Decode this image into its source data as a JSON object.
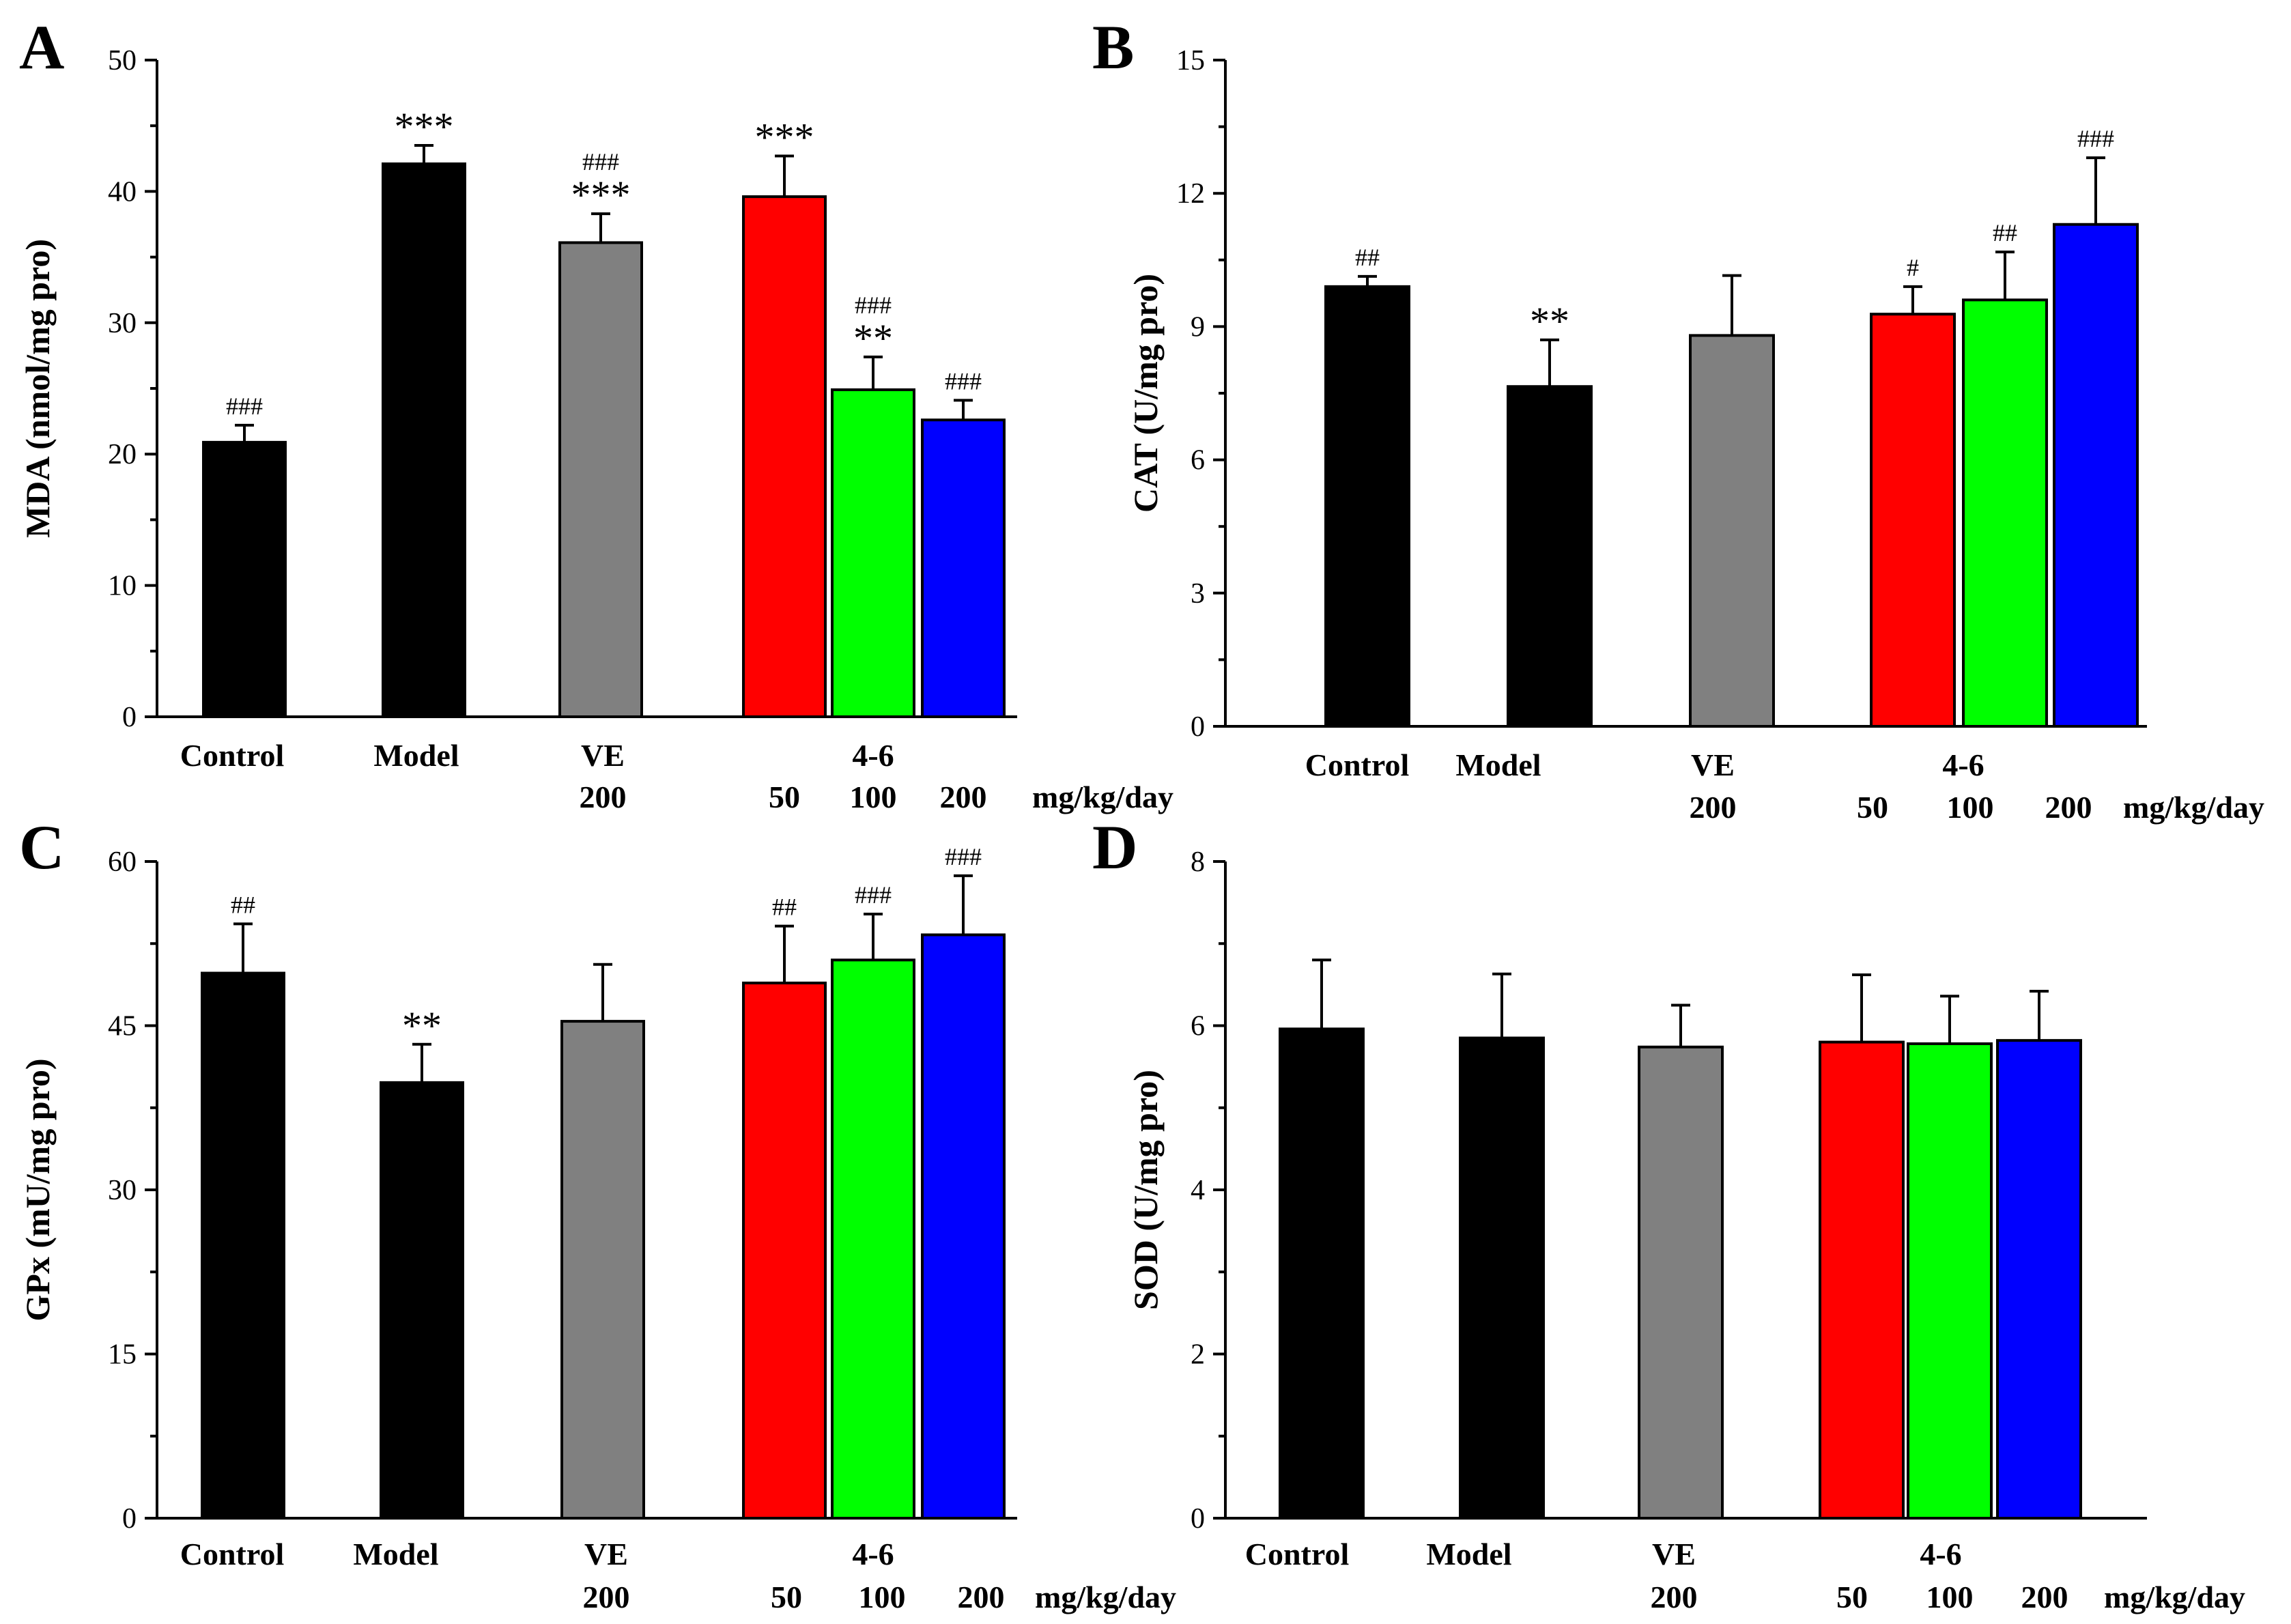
{
  "chart_data": [
    {
      "type": "bar",
      "panel_label": "A",
      "ylabel": "MDA  (nmol/mg pro)",
      "ylim": [
        0,
        50
      ],
      "yticks": [
        0,
        10,
        20,
        30,
        40,
        50
      ],
      "categories": [
        "Control",
        "Model",
        "VE",
        "4-6",
        "4-6",
        "4-6"
      ],
      "group_labels": [
        "Control",
        "Model",
        "VE",
        "4-6"
      ],
      "dose_labels": [
        "200",
        "50",
        "100",
        "200"
      ],
      "dose_unit": "mg/kg/day",
      "values": [
        20.9,
        42.1,
        36.1,
        39.6,
        24.9,
        22.6
      ],
      "errors": [
        1.3,
        1.4,
        2.2,
        3.1,
        2.5,
        1.5
      ],
      "colors": [
        "#000000",
        "#000000",
        "#808080",
        "#ff0000",
        "#00ff00",
        "#0000ff"
      ],
      "annotations": [
        {
          "hash": "###",
          "star": ""
        },
        {
          "hash": "",
          "star": "***"
        },
        {
          "hash": "###",
          "star": "***"
        },
        {
          "hash": "",
          "star": "***"
        },
        {
          "hash": "###",
          "star": "**"
        },
        {
          "hash": "###",
          "star": ""
        }
      ]
    },
    {
      "type": "bar",
      "panel_label": "B",
      "ylabel": "CAT (U/mg pro)",
      "ylim": [
        0,
        15
      ],
      "yticks": [
        0,
        3,
        6,
        9,
        12,
        15
      ],
      "categories": [
        "Control",
        "Model",
        "VE",
        "4-6",
        "4-6",
        "4-6"
      ],
      "group_labels": [
        "Control",
        "Model",
        "VE",
        "4-6"
      ],
      "dose_labels": [
        "200",
        "50",
        "100",
        "200"
      ],
      "dose_unit": "mg/kg/day",
      "values": [
        9.9,
        7.65,
        8.8,
        9.28,
        9.6,
        11.3
      ],
      "errors": [
        0.23,
        1.05,
        1.35,
        0.62,
        1.08,
        1.5
      ],
      "colors": [
        "#000000",
        "#000000",
        "#808080",
        "#ff0000",
        "#00ff00",
        "#0000ff"
      ],
      "annotations": [
        {
          "hash": "##",
          "star": ""
        },
        {
          "hash": "",
          "star": "**"
        },
        {
          "hash": "",
          "star": ""
        },
        {
          "hash": "#",
          "star": ""
        },
        {
          "hash": "##",
          "star": ""
        },
        {
          "hash": "###",
          "star": ""
        }
      ]
    },
    {
      "type": "bar",
      "panel_label": "C",
      "ylabel": "GPx (mU/mg pro)",
      "ylim": [
        0,
        60
      ],
      "yticks": [
        0,
        15,
        30,
        45,
        60
      ],
      "categories": [
        "Control",
        "Model",
        "VE",
        "4-6",
        "4-6",
        "4-6"
      ],
      "group_labels": [
        "Control",
        "Model",
        "VE",
        "4-6"
      ],
      "dose_labels": [
        "200",
        "50",
        "100",
        "200"
      ],
      "dose_unit": "mg/kg/day",
      "values": [
        49.8,
        39.8,
        45.4,
        48.9,
        51.0,
        53.3
      ],
      "errors": [
        4.5,
        3.5,
        5.2,
        5.2,
        4.2,
        5.4
      ],
      "colors": [
        "#000000",
        "#000000",
        "#808080",
        "#ff0000",
        "#00ff00",
        "#0000ff"
      ],
      "annotations": [
        {
          "hash": "##",
          "star": ""
        },
        {
          "hash": "",
          "star": "**"
        },
        {
          "hash": "",
          "star": ""
        },
        {
          "hash": "##",
          "star": ""
        },
        {
          "hash": "###",
          "star": ""
        },
        {
          "hash": "###",
          "star": ""
        }
      ]
    },
    {
      "type": "bar",
      "panel_label": "D",
      "ylabel": "SOD (U/mg pro)",
      "ylim": [
        0,
        8
      ],
      "yticks": [
        0,
        2,
        4,
        6,
        8
      ],
      "categories": [
        "Control",
        "Model",
        "VE",
        "4-6",
        "4-6",
        "4-6"
      ],
      "group_labels": [
        "Control",
        "Model",
        "VE",
        "4-6"
      ],
      "dose_labels": [
        "200",
        "50",
        "100",
        "200"
      ],
      "dose_unit": "mg/kg/day",
      "values": [
        5.96,
        5.85,
        5.74,
        5.8,
        5.78,
        5.82
      ],
      "errors": [
        0.84,
        0.78,
        0.51,
        0.82,
        0.58,
        0.6
      ],
      "colors": [
        "#000000",
        "#000000",
        "#808080",
        "#ff0000",
        "#00ff00",
        "#0000ff"
      ],
      "annotations": [
        {
          "hash": "",
          "star": ""
        },
        {
          "hash": "",
          "star": ""
        },
        {
          "hash": "",
          "star": ""
        },
        {
          "hash": "",
          "star": ""
        },
        {
          "hash": "",
          "star": ""
        },
        {
          "hash": "",
          "star": ""
        }
      ]
    }
  ]
}
